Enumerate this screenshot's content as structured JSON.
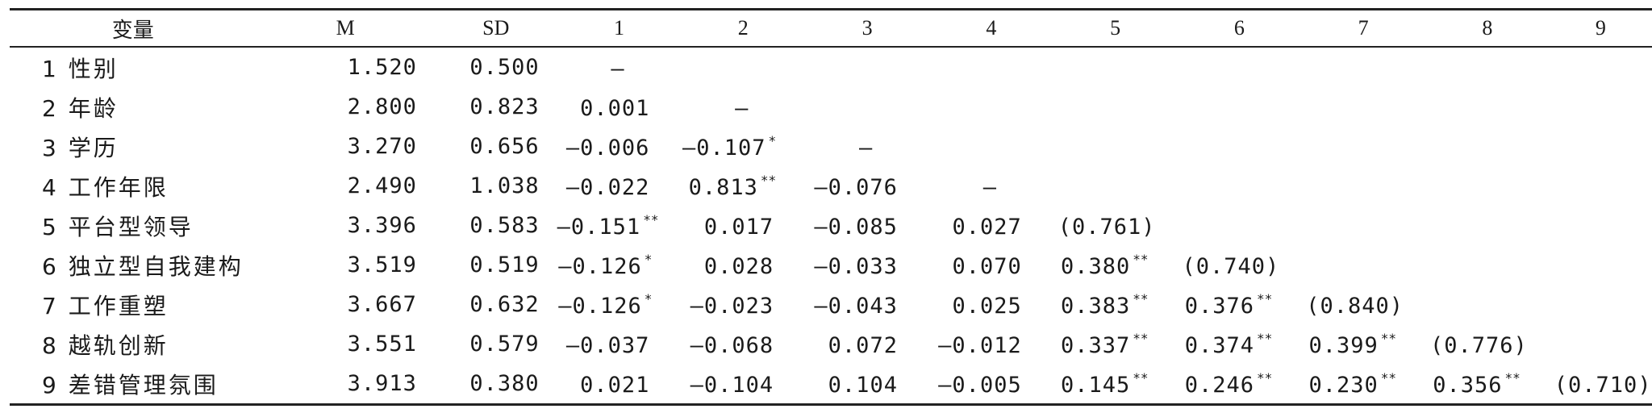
{
  "table": {
    "headers": [
      "变量",
      "M",
      "SD",
      "1",
      "2",
      "3",
      "4",
      "5",
      "6",
      "7",
      "8",
      "9"
    ],
    "rows": [
      {
        "label": "1 性别",
        "M": "1.520",
        "SD": "0.500",
        "cells": [
          {
            "v": "—",
            "s": ""
          },
          null,
          null,
          null,
          null,
          null,
          null,
          null,
          null
        ]
      },
      {
        "label": "2 年龄",
        "M": "2.800",
        "SD": "0.823",
        "cells": [
          {
            "v": "0.001",
            "s": ""
          },
          {
            "v": "—",
            "s": ""
          },
          null,
          null,
          null,
          null,
          null,
          null,
          null
        ]
      },
      {
        "label": "3 学历",
        "M": "3.270",
        "SD": "0.656",
        "cells": [
          {
            "v": "—0.006",
            "s": ""
          },
          {
            "v": "—0.107",
            "s": "*"
          },
          {
            "v": "—",
            "s": ""
          },
          null,
          null,
          null,
          null,
          null,
          null
        ]
      },
      {
        "label": "4 工作年限",
        "M": "2.490",
        "SD": "1.038",
        "cells": [
          {
            "v": "—0.022",
            "s": ""
          },
          {
            "v": "0.813",
            "s": "**"
          },
          {
            "v": "—0.076",
            "s": ""
          },
          {
            "v": "—",
            "s": ""
          },
          null,
          null,
          null,
          null,
          null
        ]
      },
      {
        "label": "5 平台型领导",
        "M": "3.396",
        "SD": "0.583",
        "cells": [
          {
            "v": "—0.151",
            "s": "**"
          },
          {
            "v": "0.017",
            "s": ""
          },
          {
            "v": "—0.085",
            "s": ""
          },
          {
            "v": "0.027",
            "s": ""
          },
          {
            "v": "(0.761)",
            "s": ""
          },
          null,
          null,
          null,
          null
        ]
      },
      {
        "label": "6 独立型自我建构",
        "M": "3.519",
        "SD": "0.519",
        "cells": [
          {
            "v": "—0.126",
            "s": "*"
          },
          {
            "v": "0.028",
            "s": ""
          },
          {
            "v": "—0.033",
            "s": ""
          },
          {
            "v": "0.070",
            "s": ""
          },
          {
            "v": "0.380",
            "s": "**"
          },
          {
            "v": "(0.740)",
            "s": ""
          },
          null,
          null,
          null
        ]
      },
      {
        "label": "7 工作重塑",
        "M": "3.667",
        "SD": "0.632",
        "cells": [
          {
            "v": "—0.126",
            "s": "*"
          },
          {
            "v": "—0.023",
            "s": ""
          },
          {
            "v": "—0.043",
            "s": ""
          },
          {
            "v": "0.025",
            "s": ""
          },
          {
            "v": "0.383",
            "s": "**"
          },
          {
            "v": "0.376",
            "s": "**"
          },
          {
            "v": "(0.840)",
            "s": ""
          },
          null,
          null
        ]
      },
      {
        "label": "8 越轨创新",
        "M": "3.551",
        "SD": "0.579",
        "cells": [
          {
            "v": "—0.037",
            "s": ""
          },
          {
            "v": "—0.068",
            "s": ""
          },
          {
            "v": "0.072",
            "s": ""
          },
          {
            "v": "—0.012",
            "s": ""
          },
          {
            "v": "0.337",
            "s": "**"
          },
          {
            "v": "0.374",
            "s": "**"
          },
          {
            "v": "0.399",
            "s": "**"
          },
          {
            "v": "(0.776)",
            "s": ""
          },
          null
        ]
      },
      {
        "label": "9 差错管理氛围",
        "M": "3.913",
        "SD": "0.380",
        "cells": [
          {
            "v": "0.021",
            "s": ""
          },
          {
            "v": "—0.104",
            "s": ""
          },
          {
            "v": "0.104",
            "s": ""
          },
          {
            "v": "—0.005",
            "s": ""
          },
          {
            "v": "0.145",
            "s": "**"
          },
          {
            "v": "0.246",
            "s": "**"
          },
          {
            "v": "0.230",
            "s": "**"
          },
          {
            "v": "0.356",
            "s": "**"
          },
          {
            "v": "(0.710)",
            "s": ""
          }
        ]
      }
    ]
  }
}
